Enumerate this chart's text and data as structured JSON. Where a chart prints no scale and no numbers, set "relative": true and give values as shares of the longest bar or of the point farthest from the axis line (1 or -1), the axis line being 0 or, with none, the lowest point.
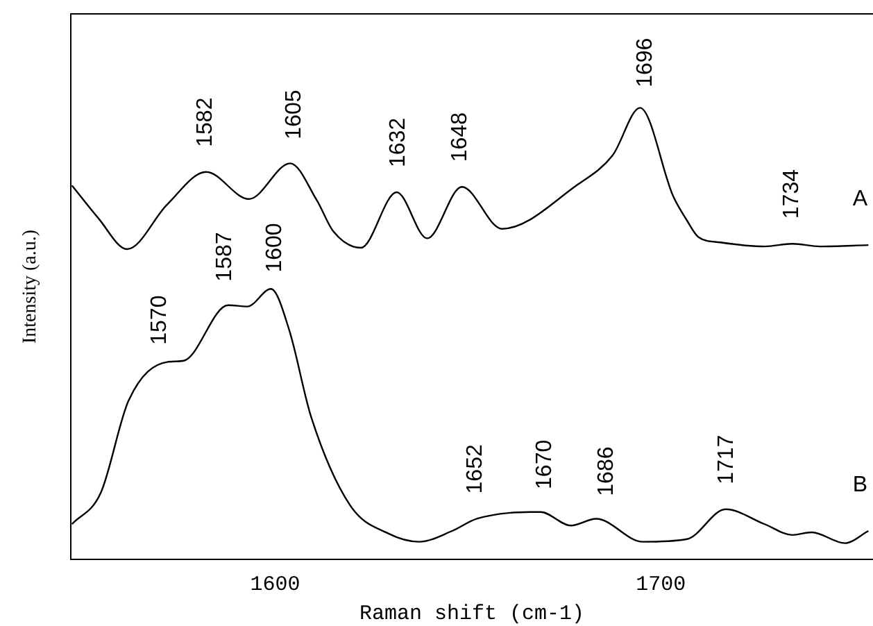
{
  "chart_data": {
    "type": "line",
    "xlabel": "Raman shift (cm-1)",
    "ylabel": "Intensity (a.u.)",
    "relative": true,
    "xlim": [
      1547,
      1755
    ],
    "xticks": [
      1600,
      1700
    ],
    "grid": false,
    "legend": false,
    "marker": "none",
    "line_style": "solid",
    "series": [
      {
        "name": "A",
        "color": "#000000",
        "x": [
          1547.3,
          1554.1,
          1561.6,
          1572.0,
          1582.1,
          1593.2,
          1603.9,
          1610.8,
          1615.1,
          1622.2,
          1631.5,
          1639.4,
          1648.4,
          1658.8,
          1678.1,
          1687.5,
          1694.6,
          1703.2,
          1706.8,
          1709.7,
          1715.4,
          1726.9,
          1734.1,
          1741.2,
          1753.8
        ],
        "values": [
          0.828,
          0.756,
          0.687,
          0.786,
          0.858,
          0.798,
          0.877,
          0.795,
          0.726,
          0.69,
          0.813,
          0.711,
          0.825,
          0.732,
          0.828,
          0.895,
          1.0,
          0.804,
          0.75,
          0.714,
          0.702,
          0.693,
          0.699,
          0.693,
          0.696
        ]
      },
      {
        "name": "B",
        "color": "#000000",
        "x": [
          1547.3,
          1554.8,
          1562.0,
          1572.0,
          1576.3,
          1587.8,
          1592.8,
          1598.9,
          1603.6,
          1609.3,
          1619.4,
          1629.4,
          1637.3,
          1645.9,
          1652.3,
          1668.8,
          1676.7,
          1683.2,
          1695.3,
          1706.8,
          1716.8,
          1726.9,
          1734.1,
          1739.1,
          1747.7,
          1753.8
        ],
        "values": [
          0.078,
          0.148,
          0.352,
          0.437,
          0.44,
          0.563,
          0.56,
          0.599,
          0.509,
          0.316,
          0.12,
          0.057,
          0.039,
          0.063,
          0.09,
          0.105,
          0.075,
          0.09,
          0.039,
          0.045,
          0.111,
          0.078,
          0.054,
          0.06,
          0.036,
          0.063
        ]
      }
    ],
    "annotations": [
      {
        "text": "1582",
        "x": 1582,
        "y": 0.858
      },
      {
        "text": "1605",
        "x": 1605,
        "y": 0.875
      },
      {
        "text": "1632",
        "x": 1632,
        "y": 0.813
      },
      {
        "text": "1648",
        "x": 1648,
        "y": 0.825
      },
      {
        "text": "1696",
        "x": 1696,
        "y": 0.99
      },
      {
        "text": "1734",
        "x": 1734,
        "y": 0.699
      },
      {
        "text": "1570",
        "x": 1570,
        "y": 0.42
      },
      {
        "text": "1587",
        "x": 1587,
        "y": 0.56
      },
      {
        "text": "1600",
        "x": 1600,
        "y": 0.58
      },
      {
        "text": "1652",
        "x": 1652,
        "y": 0.09
      },
      {
        "text": "1670",
        "x": 1670,
        "y": 0.1
      },
      {
        "text": "1686",
        "x": 1686,
        "y": 0.085
      },
      {
        "text": "1717",
        "x": 1717,
        "y": 0.111
      }
    ]
  }
}
